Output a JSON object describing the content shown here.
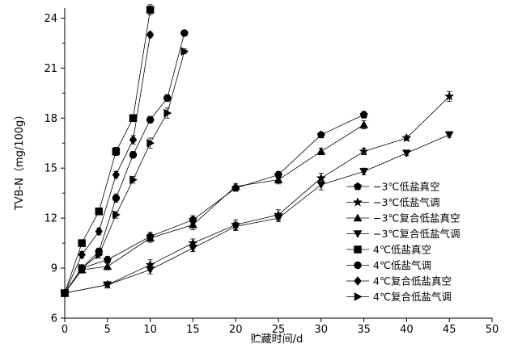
{
  "chart_data": {
    "type": "line",
    "xlabel": "贮藏时间/d",
    "ylabel": "TVB-N（mg/100g）",
    "xlim": [
      0,
      50
    ],
    "ylim": [
      6,
      24.6
    ],
    "xticks": [
      0,
      5,
      10,
      15,
      20,
      25,
      30,
      35,
      40,
      45,
      50
    ],
    "yticks": [
      6,
      9,
      12,
      15,
      18,
      21,
      24
    ],
    "grid": false,
    "legend_position": "right-middle",
    "series": [
      {
        "name": "−3℃低盐真空",
        "marker": "pentagon",
        "x": [
          0,
          2,
          5,
          10,
          15,
          20,
          25,
          30,
          35
        ],
        "y": [
          7.5,
          9.0,
          9.5,
          10.9,
          11.9,
          13.8,
          14.6,
          17.0,
          18.2
        ],
        "err": [
          0.15,
          0.2,
          0.2,
          0.25,
          0.25,
          0.15,
          0.2,
          0.15,
          0.2
        ]
      },
      {
        "name": "−3℃低盐气调",
        "marker": "star",
        "x": [
          0,
          5,
          10,
          15,
          20,
          25,
          30,
          35,
          40,
          45
        ],
        "y": [
          7.5,
          8.0,
          9.2,
          10.5,
          11.6,
          12.2,
          14.4,
          16.0,
          16.8,
          19.3
        ],
        "err": [
          0.15,
          0.15,
          0.3,
          0.25,
          0.3,
          0.3,
          0.3,
          0.2,
          0.15,
          0.3
        ]
      },
      {
        "name": "−3℃复合低盐真空",
        "marker": "triangle-up",
        "x": [
          0,
          2,
          5,
          10,
          15,
          20,
          25,
          30,
          35
        ],
        "y": [
          7.5,
          8.9,
          9.1,
          10.8,
          11.6,
          13.9,
          14.3,
          16.0,
          17.6
        ],
        "err": [
          0.15,
          0.2,
          0.2,
          0.25,
          0.3,
          0.15,
          0.25,
          0.2,
          0.25
        ]
      },
      {
        "name": "−3℃复合低盐气调",
        "marker": "triangle-down",
        "x": [
          0,
          5,
          10,
          15,
          20,
          25,
          30,
          35,
          40,
          45
        ],
        "y": [
          7.5,
          8.0,
          8.9,
          10.2,
          11.5,
          12.0,
          14.0,
          14.8,
          15.9,
          17.0
        ],
        "err": [
          0.15,
          0.15,
          0.25,
          0.2,
          0.25,
          0.2,
          0.3,
          0.2,
          0.15,
          0.15
        ]
      },
      {
        "name": "4℃低盐真空",
        "marker": "square",
        "x": [
          0,
          2,
          4,
          6,
          8,
          10
        ],
        "y": [
          7.5,
          10.5,
          12.4,
          16.0,
          18.0,
          24.5
        ],
        "err": [
          0.15,
          0.2,
          0.15,
          0.25,
          0.15,
          0.3
        ]
      },
      {
        "name": "4℃低盐气调",
        "marker": "circle",
        "x": [
          0,
          2,
          4,
          6,
          8,
          10,
          12,
          14
        ],
        "y": [
          7.5,
          9.0,
          10.0,
          13.2,
          15.8,
          17.9,
          19.2,
          23.1
        ],
        "err": [
          0.15,
          0.2,
          0.2,
          0.25,
          0.2,
          0.2,
          0.2,
          0.1
        ]
      },
      {
        "name": "4℃复合低盐真空",
        "marker": "diamond",
        "x": [
          0,
          2,
          4,
          6,
          8,
          10
        ],
        "y": [
          7.5,
          9.8,
          11.2,
          14.6,
          16.7,
          23.0
        ],
        "err": [
          0.15,
          0.2,
          0.2,
          0.2,
          0.25,
          0.15
        ]
      },
      {
        "name": "4℃复合低盐气调",
        "marker": "triangle-right",
        "x": [
          0,
          2,
          4,
          6,
          8,
          10,
          12,
          14
        ],
        "y": [
          7.5,
          9.0,
          9.8,
          12.2,
          14.3,
          16.5,
          18.3,
          22.0
        ],
        "err": [
          0.15,
          0.2,
          0.2,
          0.2,
          0.2,
          0.3,
          0.3,
          0.15
        ]
      }
    ]
  }
}
